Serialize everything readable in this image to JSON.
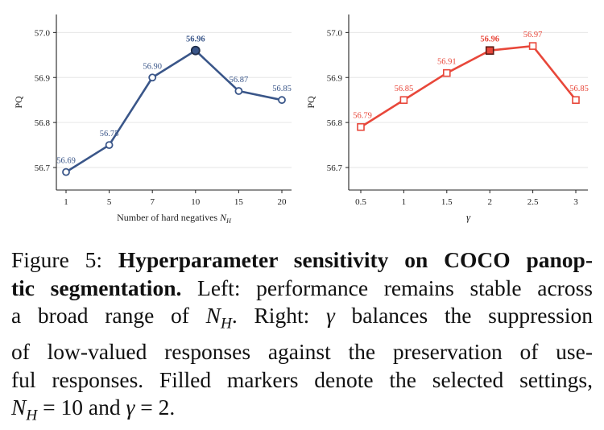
{
  "chart_data": [
    {
      "type": "line",
      "panel": "left",
      "xlabel": "Number of hard negatives N_H",
      "xlabel_text": "Number of hard negatives ",
      "xlabel_var": "N",
      "xlabel_sub": "H",
      "ylabel": "PQ",
      "ylim": [
        56.65,
        57.04
      ],
      "yticks": [
        "56.7",
        "56.8",
        "56.9",
        "57.0"
      ],
      "yticks_values": [
        56.7,
        56.8,
        56.9,
        57.0
      ],
      "categories": [
        "1",
        "5",
        "7",
        "10",
        "15",
        "20"
      ],
      "values": [
        56.69,
        56.75,
        56.9,
        56.96,
        56.87,
        56.85
      ],
      "labels": [
        "56.69",
        "56.75",
        "56.90",
        "56.96",
        "56.87",
        "56.85"
      ],
      "selected_index": 3,
      "marker": "circle",
      "color": "#3a5689",
      "grid": "horizontal",
      "legend": "none"
    },
    {
      "type": "line",
      "panel": "right",
      "xlabel": "γ",
      "ylabel": "PQ",
      "ylim": [
        56.65,
        57.04
      ],
      "yticks": [
        "56.7",
        "56.8",
        "56.9",
        "57.0"
      ],
      "yticks_values": [
        56.7,
        56.8,
        56.9,
        57.0
      ],
      "categories": [
        "0.5",
        "1",
        "1.5",
        "2",
        "2.5",
        "3"
      ],
      "values": [
        56.79,
        56.85,
        56.91,
        56.96,
        56.97,
        56.85
      ],
      "labels": [
        "56.79",
        "56.85",
        "56.91",
        "56.96",
        "56.97",
        "56.85"
      ],
      "selected_index": 3,
      "marker": "square",
      "color": "#e8473a",
      "grid": "horizontal",
      "legend": "none"
    }
  ],
  "caption": {
    "figure_label": "Figure 5: ",
    "bold_title": "Hyperparameter sensitivity on COCO panoptic segmentation.",
    "line1_prefix": "Figure 5: ",
    "line1_bold": "Hyperparameter sensitivity on COCO panop-",
    "line2_bold": "tic segmentation.",
    "line2_text": " Left: performance remains stable across",
    "line3_text_a": "a broad range of ",
    "line3_var": "N",
    "line3_sub": "H",
    "line3_text_b": ". Right: ",
    "line3_gamma": "γ",
    "line3_text_c": " balances the suppression",
    "line4_text": "of low-valued responses against the preservation of use-",
    "line5_text": "ful responses. Filled markers denote the selected settings,",
    "line6_var": "N",
    "line6_sub": "H",
    "line6_text_a": " = 10 and ",
    "line6_gamma": "γ",
    "line6_text_b": " = 2."
  }
}
